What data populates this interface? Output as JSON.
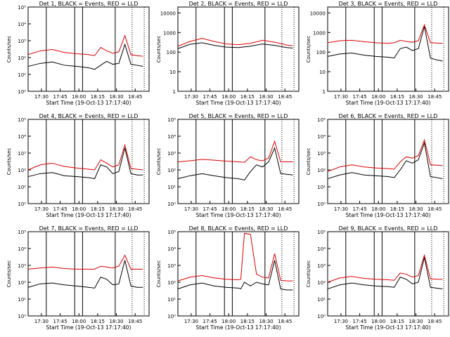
{
  "colors": {
    "events": "#000000",
    "lld": "#dd0000",
    "axes": "#000000",
    "marker": "#000000"
  },
  "common": {
    "xlabel": "Start Time (19-Oct-13 17:17:40)",
    "ylabel": "Counts/sec",
    "tick_labels": [
      "17:30",
      "17:45",
      "18:00",
      "18:15",
      "18:30",
      "18:45"
    ],
    "title_suffix": "BLACK = Events, RED = LLD"
  },
  "chart_data": [
    {
      "type": "line",
      "title": "Det 1,  BLACK = Events, RED = LLD",
      "ylabel": "Counts/sec",
      "xlabel": "Start Time (19-Oct-13 17:17:40)",
      "x_ticks": [
        "17:30",
        "17:45",
        "18:00",
        "18:15",
        "18:30",
        "18:45"
      ],
      "ylog": true,
      "ylim": [
        1,
        100000
      ],
      "y_tick_labels": [
        "10⁰",
        "10¹",
        "10²",
        "10³",
        "10⁴",
        "10⁵"
      ],
      "y_ticks": [
        1,
        10,
        100,
        1000,
        10000,
        100000
      ],
      "series": [
        {
          "name": "Events",
          "color": "#000000",
          "x": [
            0,
            10,
            20,
            30,
            40,
            50,
            55,
            60,
            65,
            70,
            75,
            80,
            85,
            90,
            95
          ],
          "y": [
            30,
            45,
            55,
            35,
            30,
            25,
            20,
            35,
            60,
            40,
            45,
            600,
            40,
            35,
            30
          ]
        },
        {
          "name": "LLD",
          "color": "#dd0000",
          "x": [
            0,
            10,
            20,
            30,
            40,
            50,
            55,
            60,
            65,
            70,
            75,
            80,
            85,
            90,
            95
          ],
          "y": [
            150,
            250,
            300,
            200,
            170,
            150,
            130,
            400,
            250,
            180,
            220,
            2000,
            150,
            130,
            120
          ]
        }
      ]
    },
    {
      "type": "line",
      "title": "Det 2,  BLACK = Events, RED = LLD",
      "ylabel": "Counts/sec",
      "xlabel": "Start Time (19-Oct-13 17:17:40)",
      "x_ticks": [
        "17:30",
        "17:45",
        "18:00",
        "18:15",
        "18:30",
        "18:45"
      ],
      "ylog": true,
      "ylim": [
        1,
        20000
      ],
      "y_tick_labels": [
        "1",
        "10",
        "100",
        "1000",
        "10000"
      ],
      "y_ticks": [
        1,
        10,
        100,
        1000,
        10000
      ],
      "series": [
        {
          "name": "Events",
          "color": "#000000",
          "x": [
            0,
            10,
            20,
            30,
            40,
            50,
            60,
            70,
            80,
            90,
            95
          ],
          "y": [
            150,
            250,
            300,
            220,
            180,
            170,
            200,
            260,
            220,
            170,
            160
          ]
        },
        {
          "name": "LLD",
          "color": "#dd0000",
          "x": [
            0,
            10,
            20,
            30,
            40,
            50,
            60,
            70,
            80,
            90,
            95
          ],
          "y": [
            200,
            350,
            500,
            350,
            260,
            240,
            280,
            400,
            320,
            230,
            210
          ]
        }
      ]
    },
    {
      "type": "line",
      "title": "Det 3,  BLACK = Events, RED = LLD",
      "ylabel": "Counts/sec",
      "xlabel": "Start Time (19-Oct-13 17:17:40)",
      "x_ticks": [
        "17:30",
        "17:45",
        "18:00",
        "18:15",
        "18:30",
        "18:45"
      ],
      "ylog": true,
      "ylim": [
        1,
        20000
      ],
      "y_tick_labels": [
        "1",
        "10",
        "100",
        "1000",
        "10000"
      ],
      "y_ticks": [
        1,
        10,
        100,
        1000,
        10000
      ],
      "series": [
        {
          "name": "Events",
          "color": "#000000",
          "x": [
            0,
            10,
            20,
            30,
            40,
            50,
            55,
            60,
            65,
            70,
            75,
            80,
            85,
            90,
            95
          ],
          "y": [
            60,
            80,
            90,
            70,
            60,
            55,
            50,
            150,
            180,
            120,
            150,
            2000,
            50,
            40,
            35
          ]
        },
        {
          "name": "LLD",
          "color": "#dd0000",
          "x": [
            0,
            10,
            20,
            30,
            40,
            50,
            55,
            60,
            65,
            70,
            75,
            80,
            85,
            90,
            95
          ],
          "y": [
            300,
            380,
            400,
            340,
            300,
            280,
            300,
            400,
            350,
            320,
            380,
            2500,
            300,
            290,
            280
          ]
        }
      ]
    },
    {
      "type": "line",
      "title": "Det 4,  BLACK = Events, RED = LLD",
      "ylabel": "Counts/sec",
      "xlabel": "Start Time (19-Oct-13 17:17:40)",
      "x_ticks": [
        "17:30",
        "17:45",
        "18:00",
        "18:15",
        "18:30",
        "18:45"
      ],
      "ylog": true,
      "ylim": [
        1,
        100000
      ],
      "y_tick_labels": [
        "10⁰",
        "10¹",
        "10²",
        "10³",
        "10⁴",
        "10⁵"
      ],
      "y_ticks": [
        1,
        10,
        100,
        1000,
        10000,
        100000
      ],
      "series": [
        {
          "name": "Events",
          "color": "#000000",
          "x": [
            0,
            10,
            20,
            30,
            40,
            50,
            55,
            60,
            65,
            70,
            75,
            80,
            85,
            90,
            95
          ],
          "y": [
            40,
            60,
            70,
            45,
            40,
            35,
            30,
            200,
            150,
            60,
            80,
            2000,
            60,
            50,
            50
          ]
        },
        {
          "name": "LLD",
          "color": "#dd0000",
          "x": [
            0,
            10,
            20,
            30,
            40,
            50,
            55,
            60,
            65,
            70,
            75,
            80,
            85,
            90,
            95
          ],
          "y": [
            100,
            200,
            250,
            160,
            130,
            110,
            100,
            400,
            250,
            150,
            200,
            3000,
            120,
            110,
            100
          ]
        }
      ]
    },
    {
      "type": "line",
      "title": "Det 5,  BLACK = Events, RED = LLD",
      "ylabel": "Counts/sec",
      "xlabel": "Start Time (19-Oct-13 17:17:40)",
      "x_ticks": [
        "17:30",
        "17:45",
        "18:00",
        "18:15",
        "18:30",
        "18:45"
      ],
      "ylog": true,
      "ylim": [
        1,
        100000
      ],
      "y_tick_labels": [
        "10⁰",
        "10¹",
        "10²",
        "10³",
        "10⁴",
        "10⁵"
      ],
      "y_ticks": [
        1,
        10,
        100,
        1000,
        10000,
        100000
      ],
      "series": [
        {
          "name": "Events",
          "color": "#000000",
          "x": [
            0,
            10,
            20,
            30,
            40,
            50,
            55,
            60,
            65,
            70,
            75,
            80,
            85,
            90,
            95
          ],
          "y": [
            30,
            45,
            60,
            45,
            35,
            30,
            25,
            80,
            200,
            150,
            300,
            2000,
            60,
            55,
            50
          ]
        },
        {
          "name": "LLD",
          "color": "#dd0000",
          "x": [
            0,
            10,
            20,
            30,
            40,
            50,
            55,
            60,
            65,
            70,
            75,
            80,
            85,
            90,
            95
          ],
          "y": [
            300,
            350,
            420,
            380,
            330,
            300,
            280,
            600,
            400,
            350,
            500,
            5000,
            300,
            300,
            300
          ]
        }
      ]
    },
    {
      "type": "line",
      "title": "Det 6,  BLACK = Events, RED = LLD",
      "ylabel": "Counts/sec",
      "xlabel": "Start Time (19-Oct-13 17:17:40)",
      "x_ticks": [
        "17:30",
        "17:45",
        "18:00",
        "18:15",
        "18:30",
        "18:45"
      ],
      "ylog": true,
      "ylim": [
        1,
        100000
      ],
      "y_tick_labels": [
        "10⁰",
        "10¹",
        "10²",
        "10³",
        "10⁴",
        "10⁵"
      ],
      "y_ticks": [
        1,
        10,
        100,
        1000,
        10000,
        100000
      ],
      "series": [
        {
          "name": "Events",
          "color": "#000000",
          "x": [
            0,
            10,
            20,
            30,
            40,
            50,
            55,
            60,
            65,
            70,
            75,
            80,
            85,
            90,
            95
          ],
          "y": [
            30,
            50,
            70,
            50,
            45,
            40,
            35,
            100,
            350,
            250,
            400,
            4000,
            40,
            35,
            30
          ]
        },
        {
          "name": "LLD",
          "color": "#dd0000",
          "x": [
            0,
            10,
            20,
            30,
            40,
            50,
            55,
            60,
            65,
            70,
            75,
            80,
            85,
            90,
            95
          ],
          "y": [
            80,
            150,
            200,
            150,
            130,
            120,
            110,
            300,
            600,
            500,
            700,
            6000,
            200,
            190,
            180
          ]
        }
      ]
    },
    {
      "type": "line",
      "title": "Det 7,  BLACK = Events, RED = LLD",
      "ylabel": "Counts/sec",
      "xlabel": "Start Time (19-Oct-13 17:17:40)",
      "x_ticks": [
        "17:30",
        "17:45",
        "18:00",
        "18:15",
        "18:30",
        "18:45"
      ],
      "ylog": true,
      "ylim": [
        1,
        100000
      ],
      "y_tick_labels": [
        "10⁰",
        "10¹",
        "10²",
        "10³",
        "10⁴",
        "10⁵"
      ],
      "y_ticks": [
        1,
        10,
        100,
        1000,
        10000,
        100000
      ],
      "series": [
        {
          "name": "Events",
          "color": "#000000",
          "x": [
            0,
            10,
            20,
            30,
            40,
            50,
            55,
            60,
            65,
            70,
            75,
            80,
            85,
            90,
            95
          ],
          "y": [
            50,
            80,
            90,
            70,
            60,
            50,
            45,
            200,
            150,
            70,
            80,
            2000,
            60,
            50,
            50
          ]
        },
        {
          "name": "LLD",
          "color": "#dd0000",
          "x": [
            0,
            10,
            20,
            30,
            40,
            50,
            55,
            60,
            65,
            70,
            75,
            80,
            85,
            90,
            95
          ],
          "y": [
            600,
            700,
            800,
            650,
            600,
            600,
            600,
            900,
            800,
            700,
            900,
            4000,
            600,
            600,
            600
          ]
        }
      ]
    },
    {
      "type": "line",
      "title": "Det 8,  BLACK = Events, RED = LLD",
      "ylabel": "Counts/sec",
      "xlabel": "Start Time (19-Oct-13 17:17:40)",
      "x_ticks": [
        "17:30",
        "17:45",
        "18:00",
        "18:15",
        "18:30",
        "18:45"
      ],
      "ylog": true,
      "ylim": [
        1,
        100000
      ],
      "y_tick_labels": [
        "10⁰",
        "10¹",
        "10²",
        "10³",
        "10⁴",
        "10⁵"
      ],
      "y_ticks": [
        1,
        10,
        100,
        1000,
        10000,
        100000
      ],
      "series": [
        {
          "name": "Events",
          "color": "#000000",
          "x": [
            0,
            10,
            20,
            30,
            40,
            50,
            52,
            55,
            60,
            65,
            70,
            75,
            80,
            85,
            90,
            95
          ],
          "y": [
            40,
            70,
            90,
            60,
            50,
            45,
            40,
            100,
            60,
            100,
            80,
            70,
            2000,
            40,
            35,
            35
          ]
        },
        {
          "name": "LLD",
          "color": "#dd0000",
          "x": [
            0,
            10,
            20,
            30,
            40,
            50,
            52,
            55,
            60,
            65,
            70,
            75,
            80,
            85,
            90,
            95
          ],
          "y": [
            120,
            200,
            250,
            180,
            150,
            140,
            150,
            80000,
            70000,
            300,
            200,
            180,
            5000,
            130,
            120,
            120
          ]
        }
      ]
    },
    {
      "type": "line",
      "title": "Det 9,  BLACK = Events, RED = LLD",
      "ylabel": "Counts/sec",
      "xlabel": "Start Time (19-Oct-13 17:17:40)",
      "x_ticks": [
        "17:30",
        "17:45",
        "18:00",
        "18:15",
        "18:30",
        "18:45"
      ],
      "ylog": true,
      "ylim": [
        1,
        100000
      ],
      "y_tick_labels": [
        "10⁰",
        "10¹",
        "10²",
        "10³",
        "10⁴",
        "10⁵"
      ],
      "y_ticks": [
        1,
        10,
        100,
        1000,
        10000,
        100000
      ],
      "series": [
        {
          "name": "Events",
          "color": "#000000",
          "x": [
            0,
            10,
            20,
            30,
            40,
            50,
            55,
            60,
            65,
            70,
            75,
            80,
            85,
            90,
            95
          ],
          "y": [
            40,
            70,
            90,
            70,
            60,
            55,
            50,
            200,
            150,
            80,
            100,
            3000,
            50,
            45,
            40
          ]
        },
        {
          "name": "LLD",
          "color": "#dd0000",
          "x": [
            0,
            10,
            20,
            30,
            40,
            50,
            55,
            60,
            65,
            70,
            75,
            80,
            85,
            90,
            95
          ],
          "y": [
            100,
            180,
            220,
            170,
            150,
            140,
            130,
            350,
            300,
            200,
            250,
            4000,
            160,
            150,
            150
          ]
        }
      ]
    }
  ]
}
